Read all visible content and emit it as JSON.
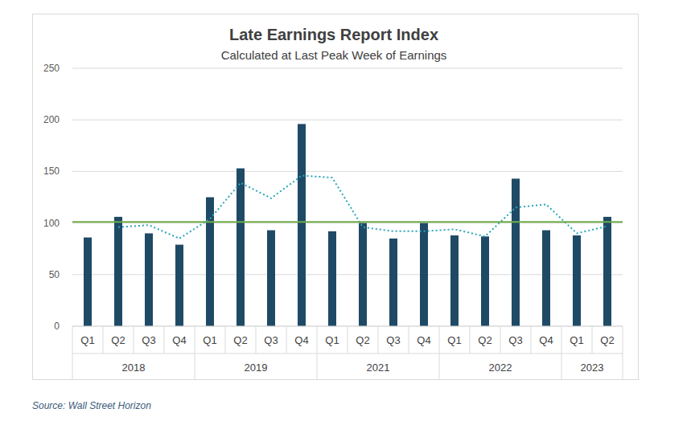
{
  "chart_data": {
    "type": "bar",
    "title": "Late Earnings Report Index",
    "subtitle": "Calculated at Last Peak Week of Earnings",
    "source": "Source: Wall Street Horizon",
    "categories": [
      "Q1",
      "Q2",
      "Q3",
      "Q4",
      "Q1",
      "Q2",
      "Q3",
      "Q4",
      "Q1",
      "Q2",
      "Q3",
      "Q4",
      "Q1",
      "Q2",
      "Q3",
      "Q4",
      "Q1",
      "Q2"
    ],
    "category_groups": [
      "2018",
      "2018",
      "2018",
      "2018",
      "2019",
      "2019",
      "2019",
      "2019",
      "2021",
      "2021",
      "2021",
      "2021",
      "2022",
      "2022",
      "2022",
      "2022",
      "2023",
      "2023"
    ],
    "series": [
      {
        "type": "bar",
        "color": "#1f4a66",
        "values": [
          86,
          106,
          90,
          79,
          125,
          153,
          93,
          196,
          92,
          100,
          85,
          100,
          88,
          87,
          143,
          93,
          88,
          106
        ]
      },
      {
        "type": "line",
        "line_style": "dotted",
        "color": "#2aa7b8",
        "values": [
          null,
          96,
          98,
          85,
          104,
          139,
          124,
          146,
          144,
          96,
          92,
          92,
          94,
          87,
          115,
          118,
          90,
          97
        ]
      }
    ],
    "hline": {
      "value": 101,
      "color": "#70ad47"
    },
    "ylim": [
      0,
      250
    ],
    "yticks": [
      0,
      50,
      100,
      150,
      200,
      250
    ],
    "grid": true
  }
}
